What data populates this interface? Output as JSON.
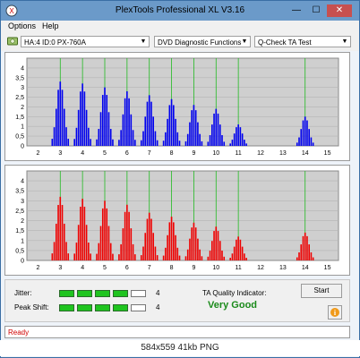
{
  "window": {
    "title": "PlexTools Professional XL V3.16"
  },
  "menu": {
    "items": [
      "Options",
      "Help"
    ]
  },
  "toolbar": {
    "drive": "HA:4 ID:0  PX-760A",
    "function": "DVD Diagnostic Functions",
    "test": "Q-Check TA Test"
  },
  "chart_data": [
    {
      "type": "bar",
      "name": "TA land (blue)",
      "color": "#0000ee",
      "xlim": [
        1.5,
        15.5
      ],
      "ylim": [
        0,
        4.5
      ],
      "x_ticks": [
        "2",
        "3",
        "4",
        "5",
        "6",
        "7",
        "8",
        "9",
        "10",
        "11",
        "12",
        "13",
        "14",
        "15"
      ],
      "y_ticks": [
        "4",
        "3,5",
        "3",
        "2,5",
        "2",
        "1,5",
        "1",
        "0,5",
        "0"
      ],
      "green_lines_at": [
        3,
        4,
        5,
        6,
        7,
        8,
        9,
        10,
        11,
        14
      ],
      "peaks": [
        {
          "x": 3,
          "height": 3.3
        },
        {
          "x": 4,
          "height": 3.2
        },
        {
          "x": 5,
          "height": 3.0
        },
        {
          "x": 6,
          "height": 2.8
        },
        {
          "x": 7,
          "height": 2.6
        },
        {
          "x": 8,
          "height": 2.4
        },
        {
          "x": 9,
          "height": 2.1
        },
        {
          "x": 10,
          "height": 1.9
        },
        {
          "x": 11,
          "height": 1.1
        },
        {
          "x": 14,
          "height": 1.5
        }
      ]
    },
    {
      "type": "bar",
      "name": "TA groove (red)",
      "color": "#ee0000",
      "xlim": [
        1.5,
        15.5
      ],
      "ylim": [
        0,
        4.5
      ],
      "x_ticks": [
        "2",
        "3",
        "4",
        "5",
        "6",
        "7",
        "8",
        "9",
        "10",
        "11",
        "12",
        "13",
        "14",
        "15"
      ],
      "y_ticks": [
        "4",
        "3,5",
        "3",
        "2,5",
        "2",
        "1,5",
        "1",
        "0,5",
        "0"
      ],
      "green_lines_at": [
        3,
        4,
        5,
        6,
        7,
        8,
        9,
        10,
        11,
        14
      ],
      "peaks": [
        {
          "x": 3,
          "height": 3.2
        },
        {
          "x": 4,
          "height": 3.1
        },
        {
          "x": 5,
          "height": 3.0
        },
        {
          "x": 6,
          "height": 2.8
        },
        {
          "x": 7,
          "height": 2.4
        },
        {
          "x": 8,
          "height": 2.2
        },
        {
          "x": 9,
          "height": 1.9
        },
        {
          "x": 10,
          "height": 1.7
        },
        {
          "x": 11,
          "height": 1.2
        },
        {
          "x": 14,
          "height": 1.4
        }
      ]
    }
  ],
  "jitter": {
    "label": "Jitter:",
    "value": "4",
    "level": 4,
    "max": 5
  },
  "peak_shift": {
    "label": "Peak Shift:",
    "value": "4",
    "level": 4,
    "max": 5
  },
  "ta": {
    "label": "TA Quality Indicator:",
    "value": "Very Good",
    "value_color": "#1a8a1a"
  },
  "buttons": {
    "start": "Start"
  },
  "status": {
    "text": "Ready",
    "color": "#d00000"
  },
  "caption": "584x559 41kb PNG"
}
